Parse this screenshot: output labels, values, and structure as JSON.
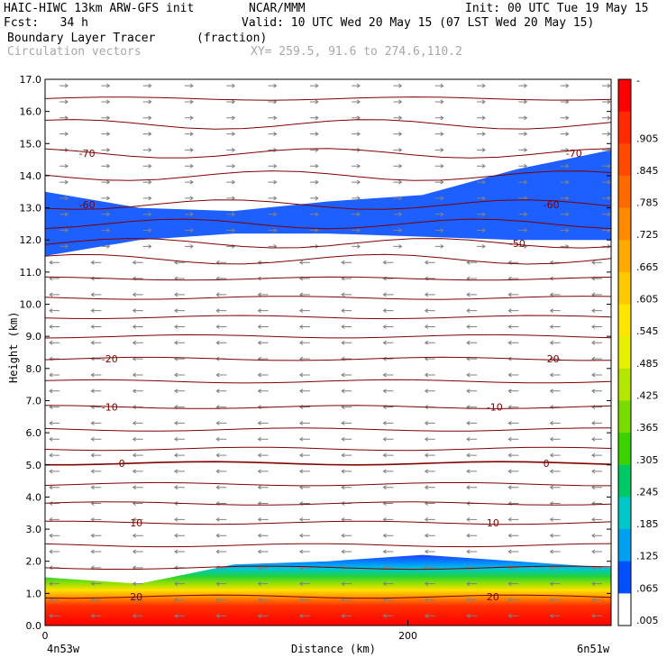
{
  "header": {
    "model": "HAIC-HIWC 13km ARW-GFS init",
    "center": "NCAR/MMM",
    "init": "Init: 00 UTC Tue 19 May 15",
    "fcst": "Fcst:   34 h",
    "valid": "Valid: 10 UTC Wed 20 May 15 (07 LST Wed 20 May 15)",
    "field": "Boundary Layer Tracer",
    "units": "(fraction)",
    "overlay": "Circulation vectors",
    "xy": "XY= 259.5, 91.6 to 274.6,110.2"
  },
  "chart_data": {
    "type": "cross-section",
    "xlabel": "Distance (km)",
    "ylabel": "Height (km)",
    "x_ticks": [
      "0",
      "200"
    ],
    "x_end_labels": {
      "left": "4n53w",
      "right": "6n51w"
    },
    "y_ticks": [
      "0.0",
      "1.0",
      "2.0",
      "3.0",
      "4.0",
      "5.0",
      "6.0",
      "7.0",
      "8.0",
      "9.0",
      "10.0",
      "11.0",
      "12.0",
      "13.0",
      "14.0",
      "15.0",
      "16.0",
      "17.0"
    ],
    "xlim": [
      0,
      312
    ],
    "ylim": [
      0,
      17
    ],
    "colorbar_labels": [
      "-",
      ".905",
      ".845",
      ".785",
      ".725",
      ".665",
      ".605",
      ".545",
      ".485",
      ".425",
      ".365",
      ".305",
      ".245",
      ".185",
      ".125",
      ".065",
      ".005"
    ],
    "colorbar_colors": [
      "#ff0000",
      "#ff2a00",
      "#ff4a00",
      "#ff6a00",
      "#ff8a00",
      "#ffaa00",
      "#ffc800",
      "#ffe600",
      "#e6f000",
      "#b4e600",
      "#78dc00",
      "#3cd200",
      "#00c864",
      "#00c8c8",
      "#00a0f0",
      "#0050ff",
      "#ffffff"
    ],
    "temperature_contours": [
      {
        "label": "-70",
        "height": 14.7
      },
      {
        "label": "-60",
        "height": 13.1
      },
      {
        "label": "-50",
        "height": 11.9
      },
      {
        "label": "-20",
        "height": 8.3
      },
      {
        "label": "-10",
        "height": 6.8
      },
      {
        "label": "0",
        "height": 5.05
      },
      {
        "label": "10",
        "height": 3.2
      },
      {
        "label": "20",
        "height": 0.9
      }
    ],
    "contour_heights": [
      16.4,
      15.6,
      14.7,
      14.0,
      13.1,
      12.5,
      11.9,
      11.4,
      10.8,
      10.2,
      9.6,
      9.0,
      8.3,
      7.6,
      6.8,
      6.1,
      5.5,
      5.05,
      4.4,
      3.8,
      3.2,
      2.5,
      1.8,
      0.9
    ],
    "upper_tracer_layer": {
      "top": [
        13.5,
        13.0,
        12.9,
        13.2,
        13.4,
        14.2,
        14.8
      ],
      "bottom": [
        11.5,
        12.0,
        12.2,
        12.2,
        12.1,
        12.0,
        12.0
      ],
      "value": 0.065
    },
    "boundary_layer_top": [
      1.5,
      1.3,
      1.9,
      2.0,
      2.2,
      2.0,
      1.8
    ],
    "vector_color": "#808080",
    "contour_color": "#800000"
  }
}
